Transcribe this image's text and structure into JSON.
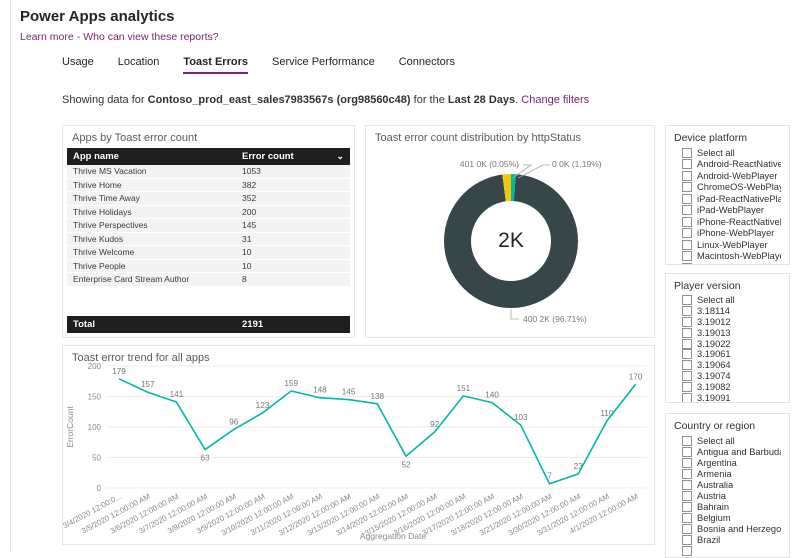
{
  "page_title": "Power Apps analytics",
  "header_links": {
    "learn_more": "Learn more",
    "separator": "-",
    "who_can_view": "Who can view these reports?"
  },
  "tabs": [
    {
      "label": "Usage",
      "active": false
    },
    {
      "label": "Location",
      "active": false
    },
    {
      "label": "Toast Errors",
      "active": true
    },
    {
      "label": "Service Performance",
      "active": false
    },
    {
      "label": "Connectors",
      "active": false
    }
  ],
  "subheader": {
    "prefix": "Showing data for",
    "environment": "Contoso_prod_east_sales7983567s",
    "org": "(org98560c48)",
    "middle": "for the",
    "period": "Last 28 Days",
    "punct": ".",
    "change_filters_label": "Change filters"
  },
  "filters": [
    {
      "title": "Device platform",
      "checkbox_state": "unchecked",
      "items": [
        "Select all",
        "Android-ReactNativePlayer",
        "Android-WebPlayer",
        "ChromeOS-WebPlayer",
        "iPad-ReactNativePlayer",
        "iPad-WebPlayer",
        "iPhone-ReactNativePlayer",
        "iPhone-WebPlayer",
        "Linux-WebPlayer",
        "Macintosh-WebPlayer"
      ]
    },
    {
      "title": "Player version",
      "checkbox_state": "unchecked",
      "items": [
        "Select all",
        "3.18114",
        "3.19012",
        "3.19013",
        "3.19022",
        "3.19061",
        "3.19064",
        "3.19074",
        "3.19082",
        "3.19091"
      ]
    },
    {
      "title": "Country or region",
      "checkbox_state": "unchecked",
      "items": [
        "Select all",
        "Antigua and Barbuda",
        "Argentina",
        "Armenia",
        "Australia",
        "Austria",
        "Bahrain",
        "Belgium",
        "Bosnia and Herzegovina",
        "Brazil"
      ]
    }
  ],
  "chart_data": [
    {
      "type": "table",
      "title": "Apps by Toast error count",
      "columns": [
        "App name",
        "Error count"
      ],
      "rows": [
        [
          "Thrive MS Vacation",
          1053
        ],
        [
          "Thrive Home",
          382
        ],
        [
          "Thrive Time Away",
          352
        ],
        [
          "Thrive Holidays",
          200
        ],
        [
          "Thrive Perspectives",
          145
        ],
        [
          "Thrive Kudos",
          31
        ],
        [
          "Thrive Welcome",
          10
        ],
        [
          "Thrive People",
          10
        ],
        [
          "Enterprise Card Stream Author",
          8
        ]
      ],
      "total_label": "Total",
      "total": 2191
    },
    {
      "type": "pie",
      "title": "Toast error count distribution by httpStatus",
      "center_label": "2K",
      "slices": [
        {
          "label": "0 0K (1.19%)",
          "pct": 1.19,
          "color": "#01B8AA"
        },
        {
          "label": "400 2K (96.71%)",
          "pct": 96.71,
          "color": "#374649"
        },
        {
          "label": "",
          "pct": 2.05,
          "color": "#F2C80F"
        },
        {
          "label": "401 0K (0.05%)",
          "pct": 0.05,
          "color": "#C9C9C9"
        }
      ]
    },
    {
      "type": "line",
      "title": "Toast error trend for all apps",
      "xlabel": "Aggregation Date",
      "ylabel": "ErrorCount",
      "ylim": [
        0,
        200
      ],
      "yticks": [
        0,
        50,
        100,
        150,
        200
      ],
      "color": "#01B8AA",
      "x": [
        "3/4/2020 12:00:0...",
        "3/5/2020 12:00:00 AM",
        "3/6/2020 12:00:00 AM",
        "3/7/2020 12:00:00 AM",
        "3/8/2020 12:00:00 AM",
        "3/9/2020 12:00:00 AM",
        "3/10/2020 12:00:00 AM",
        "3/11/2020 12:00:00 AM",
        "3/12/2020 12:00:00 AM",
        "3/13/2020 12:00:00 AM",
        "3/14/2020 12:00:00 AM",
        "3/15/2020 12:00:00 AM",
        "3/16/2020 12:00:00 AM",
        "3/17/2020 12:00:00 AM",
        "3/18/2020 12:00:00 AM",
        "3/21/2020 12:00:00 AM",
        "3/30/2020 12:00:00 AM",
        "3/31/2020 12:00:00 AM",
        "4/1/2020 12:00:00 AM"
      ],
      "values": [
        179,
        157,
        141,
        63,
        96,
        123,
        159,
        148,
        145,
        138,
        52,
        92,
        151,
        140,
        103,
        7,
        23,
        110,
        170
      ],
      "label_below_indices": [
        3,
        10
      ]
    }
  ],
  "colors": {
    "accent_purple": "#742774",
    "teal": "#01B8AA",
    "dark_slate": "#374649",
    "yellow": "#F2C80F",
    "gray_slice": "#C9C9C9",
    "table_header_bg": "#1F1E1E"
  }
}
